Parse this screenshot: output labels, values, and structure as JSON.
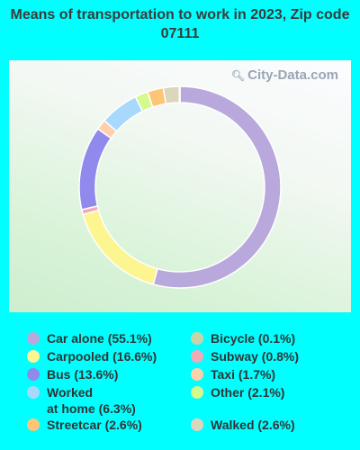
{
  "chart_data": {
    "type": "pie",
    "title": "Means of transportation to work in 2023, Zip code 07111",
    "watermark": "City-Data.com",
    "donut": true,
    "series": [
      {
        "label": "Car alone",
        "legend_text": "Car alone (55.1%)",
        "value": 55.1,
        "color": "#b9a8dc"
      },
      {
        "label": "Carpooled",
        "legend_text": "Carpooled (16.6%)",
        "value": 16.6,
        "color": "#fdf590"
      },
      {
        "label": "Bus",
        "legend_text": "Bus (13.6%)",
        "value": 13.6,
        "color": "#8f8aec"
      },
      {
        "label": "Worked at home",
        "legend_text": "Worked\nat home (6.3%)",
        "value": 6.3,
        "color": "#a8d8fc"
      },
      {
        "label": "Streetcar",
        "legend_text": "Streetcar (2.6%)",
        "value": 2.6,
        "color": "#fdc676"
      },
      {
        "label": "Bicycle",
        "legend_text": "Bicycle (0.1%)",
        "value": 0.1,
        "color": "#c8d4a8"
      },
      {
        "label": "Subway",
        "legend_text": "Subway (0.8%)",
        "value": 0.8,
        "color": "#f1aab6"
      },
      {
        "label": "Taxi",
        "legend_text": "Taxi (1.7%)",
        "value": 1.7,
        "color": "#fcd0a8"
      },
      {
        "label": "Other",
        "legend_text": "Other (2.1%)",
        "value": 2.1,
        "color": "#d6f98e"
      },
      {
        "label": "Walked",
        "legend_text": "Walked (2.6%)",
        "value": 2.6,
        "color": "#dcd6bc"
      }
    ],
    "slice_order": [
      "Car alone",
      "Carpooled",
      "Subway",
      "Bus",
      "Taxi",
      "Worked at home",
      "Other",
      "Streetcar",
      "Walked",
      "Bicycle"
    ]
  }
}
